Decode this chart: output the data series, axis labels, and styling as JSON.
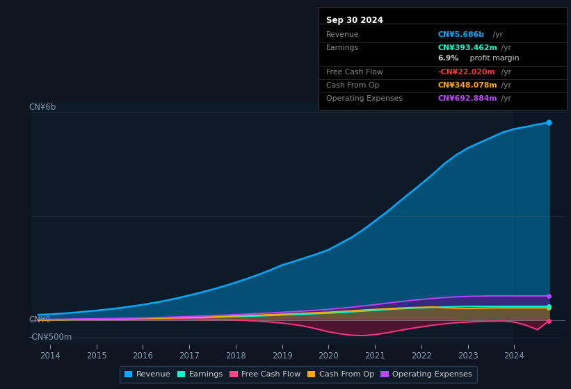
{
  "bg_color": "#0e1520",
  "chart_bg": "#0e1a28",
  "info_box_bg": "#000000",
  "info_box_border": "#333333",
  "ylabel_top": "CN¥6b",
  "ylabel_mid": "CN¥0",
  "ylabel_bot": "-CN¥500m",
  "title_box_date": "Sep 30 2024",
  "title_box_rows": [
    {
      "label": "Revenue",
      "value": "CN¥5.686b",
      "suffix": " /yr",
      "value_color": "#00aaff"
    },
    {
      "label": "Earnings",
      "value": "CN¥393.462m",
      "suffix": " /yr",
      "value_color": "#00ffcc"
    },
    {
      "label": "",
      "value": "6.9%",
      "suffix": " profit margin",
      "value_color": "#cccccc",
      "suffix_color": "#cccccc"
    },
    {
      "label": "Free Cash Flow",
      "value": "-CN¥22.020m",
      "suffix": " /yr",
      "value_color": "#ff3333"
    },
    {
      "label": "Cash From Op",
      "value": "CN¥348.078m",
      "suffix": " /yr",
      "value_color": "#ffaa00"
    },
    {
      "label": "Operating Expenses",
      "value": "CN¥692.884m",
      "suffix": " /yr",
      "value_color": "#bb44ff"
    }
  ],
  "years": [
    2013.75,
    2014.0,
    2014.25,
    2014.5,
    2014.75,
    2015.0,
    2015.25,
    2015.5,
    2015.75,
    2016.0,
    2016.25,
    2016.5,
    2016.75,
    2017.0,
    2017.25,
    2017.5,
    2017.75,
    2018.0,
    2018.25,
    2018.5,
    2018.75,
    2019.0,
    2019.25,
    2019.5,
    2019.75,
    2020.0,
    2020.25,
    2020.5,
    2020.75,
    2021.0,
    2021.25,
    2021.5,
    2021.75,
    2022.0,
    2022.25,
    2022.5,
    2022.75,
    2023.0,
    2023.25,
    2023.5,
    2023.75,
    2024.0,
    2024.25,
    2024.5,
    2024.75
  ],
  "revenue_m": [
    150,
    165,
    185,
    210,
    240,
    270,
    305,
    345,
    390,
    440,
    495,
    560,
    630,
    710,
    790,
    880,
    975,
    1080,
    1190,
    1310,
    1440,
    1580,
    1680,
    1790,
    1900,
    2020,
    2200,
    2380,
    2600,
    2850,
    3100,
    3380,
    3650,
    3920,
    4200,
    4500,
    4750,
    4950,
    5100,
    5250,
    5400,
    5500,
    5560,
    5630,
    5686
  ],
  "earnings_m": [
    5,
    6,
    8,
    10,
    12,
    15,
    18,
    22,
    27,
    32,
    38,
    45,
    52,
    60,
    68,
    77,
    86,
    96,
    106,
    118,
    130,
    143,
    155,
    168,
    182,
    196,
    215,
    235,
    255,
    278,
    300,
    318,
    335,
    350,
    365,
    375,
    385,
    390,
    393,
    393,
    393,
    393,
    393,
    393,
    393
  ],
  "free_cash_flow_m": [
    5,
    8,
    10,
    12,
    14,
    16,
    18,
    20,
    22,
    24,
    26,
    28,
    30,
    28,
    24,
    18,
    10,
    2,
    -15,
    -35,
    -60,
    -90,
    -130,
    -185,
    -260,
    -340,
    -400,
    -440,
    -450,
    -420,
    -370,
    -310,
    -250,
    -200,
    -150,
    -110,
    -80,
    -60,
    -45,
    -35,
    -30,
    -60,
    -150,
    -280,
    -22
  ],
  "cash_from_op_m": [
    -5,
    0,
    5,
    10,
    15,
    20,
    25,
    30,
    35,
    40,
    48,
    56,
    65,
    74,
    84,
    94,
    105,
    116,
    128,
    140,
    153,
    166,
    180,
    195,
    210,
    225,
    245,
    265,
    285,
    305,
    325,
    340,
    355,
    365,
    375,
    350,
    340,
    330,
    340,
    345,
    348,
    348,
    348,
    348,
    348
  ],
  "op_expenses_m": [
    15,
    18,
    22,
    26,
    30,
    35,
    40,
    46,
    53,
    60,
    68,
    78,
    88,
    99,
    111,
    124,
    138,
    153,
    168,
    185,
    203,
    222,
    240,
    260,
    282,
    305,
    335,
    368,
    403,
    440,
    480,
    520,
    560,
    590,
    620,
    645,
    665,
    678,
    688,
    693,
    695,
    692,
    692,
    692,
    692
  ],
  "legend": [
    {
      "label": "Revenue",
      "color": "#00aaff"
    },
    {
      "label": "Earnings",
      "color": "#00ffcc"
    },
    {
      "label": "Free Cash Flow",
      "color": "#ff4488"
    },
    {
      "label": "Cash From Op",
      "color": "#ffaa00"
    },
    {
      "label": "Operating Expenses",
      "color": "#bb44ff"
    }
  ],
  "x_ticks": [
    2014,
    2015,
    2016,
    2017,
    2018,
    2019,
    2020,
    2021,
    2022,
    2023,
    2024
  ],
  "x_tick_labels": [
    "2014",
    "2015",
    "2016",
    "2017",
    "2018",
    "2019",
    "2020",
    "2021",
    "2022",
    "2023",
    "2024"
  ],
  "highlight_x_start": 2024.0,
  "xlim": [
    2013.6,
    2025.1
  ],
  "ylim_m": [
    -700,
    6300
  ]
}
